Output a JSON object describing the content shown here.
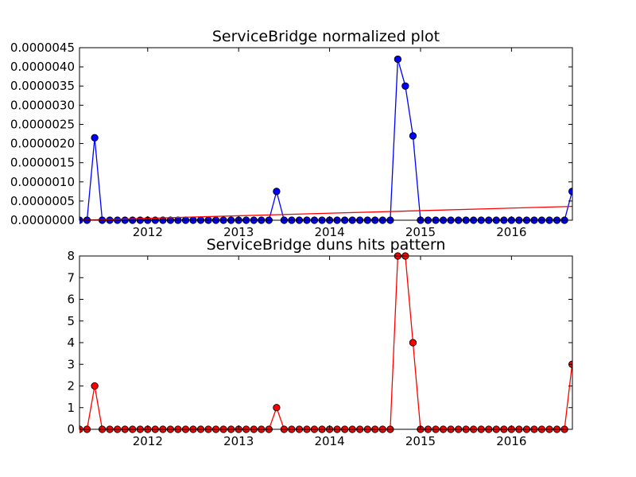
{
  "chart_data": [
    {
      "type": "line",
      "title": "ServiceBridge normalized plot",
      "xlabel": "",
      "ylabel": "",
      "xlim": [
        2011.25,
        2016.67
      ],
      "ylim": [
        0,
        4.5e-06
      ],
      "x_ticks": [
        {
          "value": 2012,
          "label": "2012"
        },
        {
          "value": 2013,
          "label": "2013"
        },
        {
          "value": 2014,
          "label": "2014"
        },
        {
          "value": 2015,
          "label": "2015"
        },
        {
          "value": 2016,
          "label": "2016"
        }
      ],
      "y_ticks": [
        {
          "value": 0.0,
          "label": "0.0000000"
        },
        {
          "value": 5e-07,
          "label": "0.0000005"
        },
        {
          "value": 1e-06,
          "label": "0.0000010"
        },
        {
          "value": 1.5e-06,
          "label": "0.0000015"
        },
        {
          "value": 2e-06,
          "label": "0.0000020"
        },
        {
          "value": 2.5e-06,
          "label": "0.0000025"
        },
        {
          "value": 3e-06,
          "label": "0.0000030"
        },
        {
          "value": 3.5e-06,
          "label": "0.0000035"
        },
        {
          "value": 4e-06,
          "label": "0.0000040"
        },
        {
          "value": 4.5e-06,
          "label": "0.0000045"
        }
      ],
      "series": [
        {
          "color": "#0000ff",
          "marker": "circle",
          "points": [
            [
              2011.25,
              0
            ],
            [
              2011.333,
              0
            ],
            [
              2011.417,
              2.15e-06
            ],
            [
              2011.5,
              0
            ],
            [
              2011.583,
              0
            ],
            [
              2011.667,
              0
            ],
            [
              2011.75,
              0
            ],
            [
              2011.833,
              0
            ],
            [
              2011.917,
              0
            ],
            [
              2012.0,
              0
            ],
            [
              2012.083,
              0
            ],
            [
              2012.167,
              0
            ],
            [
              2012.25,
              0
            ],
            [
              2012.333,
              0
            ],
            [
              2012.417,
              0
            ],
            [
              2012.5,
              0
            ],
            [
              2012.583,
              0
            ],
            [
              2012.667,
              0
            ],
            [
              2012.75,
              0
            ],
            [
              2012.833,
              0
            ],
            [
              2012.917,
              0
            ],
            [
              2013.0,
              0
            ],
            [
              2013.083,
              0
            ],
            [
              2013.167,
              0
            ],
            [
              2013.25,
              0
            ],
            [
              2013.333,
              0
            ],
            [
              2013.417,
              7.5e-07
            ],
            [
              2013.5,
              0
            ],
            [
              2013.583,
              0
            ],
            [
              2013.667,
              0
            ],
            [
              2013.75,
              0
            ],
            [
              2013.833,
              0
            ],
            [
              2013.917,
              0
            ],
            [
              2014.0,
              0
            ],
            [
              2014.083,
              0
            ],
            [
              2014.167,
              0
            ],
            [
              2014.25,
              0
            ],
            [
              2014.333,
              0
            ],
            [
              2014.417,
              0
            ],
            [
              2014.5,
              0
            ],
            [
              2014.583,
              0
            ],
            [
              2014.667,
              0
            ],
            [
              2014.75,
              4.2e-06
            ],
            [
              2014.833,
              3.5e-06
            ],
            [
              2014.917,
              2.2e-06
            ],
            [
              2015.0,
              0
            ],
            [
              2015.083,
              0
            ],
            [
              2015.167,
              0
            ],
            [
              2015.25,
              0
            ],
            [
              2015.333,
              0
            ],
            [
              2015.417,
              0
            ],
            [
              2015.5,
              0
            ],
            [
              2015.583,
              0
            ],
            [
              2015.667,
              0
            ],
            [
              2015.75,
              0
            ],
            [
              2015.833,
              0
            ],
            [
              2015.917,
              0
            ],
            [
              2016.0,
              0
            ],
            [
              2016.083,
              0
            ],
            [
              2016.167,
              0
            ],
            [
              2016.25,
              0
            ],
            [
              2016.333,
              0
            ],
            [
              2016.417,
              0
            ],
            [
              2016.5,
              0
            ],
            [
              2016.583,
              0
            ],
            [
              2016.667,
              7.5e-07
            ]
          ]
        },
        {
          "color": "#ff0000",
          "marker": "none",
          "points": [
            [
              2011.25,
              0.0
            ],
            [
              2016.67,
              3.6e-07
            ]
          ]
        }
      ]
    },
    {
      "type": "line",
      "title": "ServiceBridge duns hits pattern",
      "xlabel": "",
      "ylabel": "",
      "xlim": [
        2011.25,
        2016.67
      ],
      "ylim": [
        0,
        8
      ],
      "x_ticks": [
        {
          "value": 2012,
          "label": "2012"
        },
        {
          "value": 2013,
          "label": "2013"
        },
        {
          "value": 2014,
          "label": "2014"
        },
        {
          "value": 2015,
          "label": "2015"
        },
        {
          "value": 2016,
          "label": "2016"
        }
      ],
      "y_ticks": [
        {
          "value": 0,
          "label": "0"
        },
        {
          "value": 1,
          "label": "1"
        },
        {
          "value": 2,
          "label": "2"
        },
        {
          "value": 3,
          "label": "3"
        },
        {
          "value": 4,
          "label": "4"
        },
        {
          "value": 5,
          "label": "5"
        },
        {
          "value": 6,
          "label": "6"
        },
        {
          "value": 7,
          "label": "7"
        },
        {
          "value": 8,
          "label": "8"
        }
      ],
      "series": [
        {
          "color": "#ff0000",
          "marker": "circle",
          "points": [
            [
              2011.25,
              0
            ],
            [
              2011.333,
              0
            ],
            [
              2011.417,
              2
            ],
            [
              2011.5,
              0
            ],
            [
              2011.583,
              0
            ],
            [
              2011.667,
              0
            ],
            [
              2011.75,
              0
            ],
            [
              2011.833,
              0
            ],
            [
              2011.917,
              0
            ],
            [
              2012.0,
              0
            ],
            [
              2012.083,
              0
            ],
            [
              2012.167,
              0
            ],
            [
              2012.25,
              0
            ],
            [
              2012.333,
              0
            ],
            [
              2012.417,
              0
            ],
            [
              2012.5,
              0
            ],
            [
              2012.583,
              0
            ],
            [
              2012.667,
              0
            ],
            [
              2012.75,
              0
            ],
            [
              2012.833,
              0
            ],
            [
              2012.917,
              0
            ],
            [
              2013.0,
              0
            ],
            [
              2013.083,
              0
            ],
            [
              2013.167,
              0
            ],
            [
              2013.25,
              0
            ],
            [
              2013.333,
              0
            ],
            [
              2013.417,
              1
            ],
            [
              2013.5,
              0
            ],
            [
              2013.583,
              0
            ],
            [
              2013.667,
              0
            ],
            [
              2013.75,
              0
            ],
            [
              2013.833,
              0
            ],
            [
              2013.917,
              0
            ],
            [
              2014.0,
              0
            ],
            [
              2014.083,
              0
            ],
            [
              2014.167,
              0
            ],
            [
              2014.25,
              0
            ],
            [
              2014.333,
              0
            ],
            [
              2014.417,
              0
            ],
            [
              2014.5,
              0
            ],
            [
              2014.583,
              0
            ],
            [
              2014.667,
              0
            ],
            [
              2014.75,
              8
            ],
            [
              2014.833,
              8
            ],
            [
              2014.917,
              4
            ],
            [
              2015.0,
              0
            ],
            [
              2015.083,
              0
            ],
            [
              2015.167,
              0
            ],
            [
              2015.25,
              0
            ],
            [
              2015.333,
              0
            ],
            [
              2015.417,
              0
            ],
            [
              2015.5,
              0
            ],
            [
              2015.583,
              0
            ],
            [
              2015.667,
              0
            ],
            [
              2015.75,
              0
            ],
            [
              2015.833,
              0
            ],
            [
              2015.917,
              0
            ],
            [
              2016.0,
              0
            ],
            [
              2016.083,
              0
            ],
            [
              2016.167,
              0
            ],
            [
              2016.25,
              0
            ],
            [
              2016.333,
              0
            ],
            [
              2016.417,
              0
            ],
            [
              2016.5,
              0
            ],
            [
              2016.583,
              0
            ],
            [
              2016.667,
              3
            ]
          ]
        }
      ]
    }
  ]
}
